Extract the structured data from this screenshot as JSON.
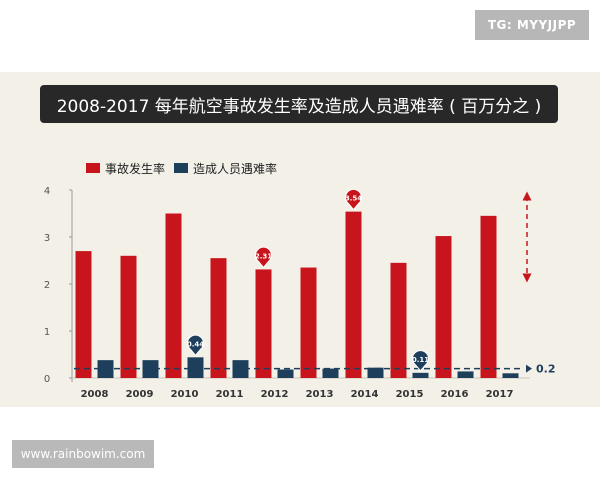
{
  "watermarks": {
    "top": "TG: MYYJJPP",
    "bottom": "www.rainbowim.com"
  },
  "colors": {
    "accident": "#c8151d",
    "fatality": "#1d3f5c",
    "panel": "#f3f0e8",
    "title_bg": "#282828"
  },
  "chart_data": {
    "type": "bar",
    "title": "2008-2017 每年航空事故发生率及造成人员遇难率 ( 百万分之 )",
    "categories": [
      "2008",
      "2009",
      "2010",
      "2011",
      "2012",
      "2013",
      "2014",
      "2015",
      "2016",
      "2017"
    ],
    "series": [
      {
        "name": "事故发生率",
        "values": [
          2.7,
          2.6,
          3.5,
          2.55,
          2.31,
          2.35,
          3.54,
          2.45,
          3.02,
          3.45
        ]
      },
      {
        "name": "造成人员遇难率",
        "values": [
          0.38,
          0.38,
          0.44,
          0.38,
          0.18,
          0.2,
          0.22,
          0.11,
          0.14,
          0.1
        ]
      }
    ],
    "ylim": [
      0,
      4
    ],
    "yticks": [
      "0",
      "1",
      "2",
      "3",
      "4"
    ],
    "callouts": [
      {
        "label": "2.31",
        "category": "2012",
        "series": 0
      },
      {
        "label": "3.54",
        "category": "2014",
        "series": 0
      },
      {
        "label": "0.44",
        "category": "2010",
        "series": 1
      },
      {
        "label": "0.11",
        "category": "2015",
        "series": 1
      }
    ],
    "reference_line": {
      "value": 0.2,
      "label": "0.2"
    },
    "range_marker": {
      "from": 2.0,
      "to": 4.0
    },
    "legend_position": "top-left"
  }
}
